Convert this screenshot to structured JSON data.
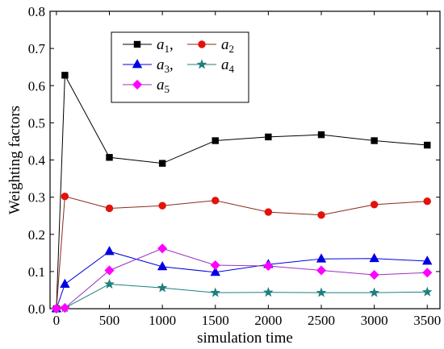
{
  "chart_data": {
    "type": "line",
    "xlabel": "simulation time",
    "ylabel": "Weighting factors",
    "xlim": [
      -60,
      3620
    ],
    "ylim": [
      0,
      0.8
    ],
    "xticks": [
      "0",
      "500",
      "1000",
      "1500",
      "2000",
      "2500",
      "3000",
      "3500"
    ],
    "yticks": [
      "0.0",
      "0.1",
      "0.2",
      "0.3",
      "0.4",
      "0.5",
      "0.6",
      "0.7",
      "0.8"
    ],
    "grid": false,
    "legend_position": "top-left",
    "series": [
      {
        "name": "a1",
        "sub": "1",
        "suffix": ",",
        "color": "#000000",
        "line_color": "#000000",
        "marker": "square",
        "x": [
          0,
          80,
          500,
          1000,
          1500,
          2000,
          2500,
          3000,
          3500
        ],
        "y": [
          0.0,
          0.628,
          0.407,
          0.391,
          0.452,
          0.462,
          0.468,
          0.452,
          0.44
        ]
      },
      {
        "name": "a2",
        "sub": "2",
        "suffix": "",
        "color": "#e3120b",
        "line_color": "#8b2a1a",
        "marker": "circle",
        "x": [
          0,
          80,
          500,
          1000,
          1500,
          2000,
          2500,
          3000,
          3500
        ],
        "y": [
          0.0,
          0.302,
          0.27,
          0.277,
          0.291,
          0.26,
          0.252,
          0.28,
          0.289
        ]
      },
      {
        "name": "a3",
        "sub": "3",
        "suffix": ",",
        "color": "#0000e0",
        "line_color": "#0000e0",
        "marker": "triangle",
        "x": [
          0,
          80,
          500,
          1000,
          1500,
          2000,
          2500,
          3000,
          3500
        ],
        "y": [
          0.0,
          0.066,
          0.154,
          0.113,
          0.098,
          0.119,
          0.134,
          0.135,
          0.128
        ]
      },
      {
        "name": "a4",
        "sub": "4",
        "suffix": "",
        "color": "#1f7f7f",
        "line_color": "#1f7f7f",
        "marker": "star",
        "x": [
          0,
          80,
          500,
          1000,
          1500,
          2000,
          2500,
          3000,
          3500
        ],
        "y": [
          0.0,
          0.002,
          0.066,
          0.056,
          0.043,
          0.044,
          0.043,
          0.043,
          0.045
        ]
      },
      {
        "name": "a5",
        "sub": "5",
        "suffix": "",
        "color": "#ff00ff",
        "line_color": "#9b30c0",
        "marker": "diamond",
        "x": [
          0,
          80,
          500,
          1000,
          1500,
          2000,
          2500,
          3000,
          3500
        ],
        "y": [
          0.0,
          0.002,
          0.103,
          0.162,
          0.117,
          0.115,
          0.103,
          0.091,
          0.097
        ]
      }
    ]
  }
}
